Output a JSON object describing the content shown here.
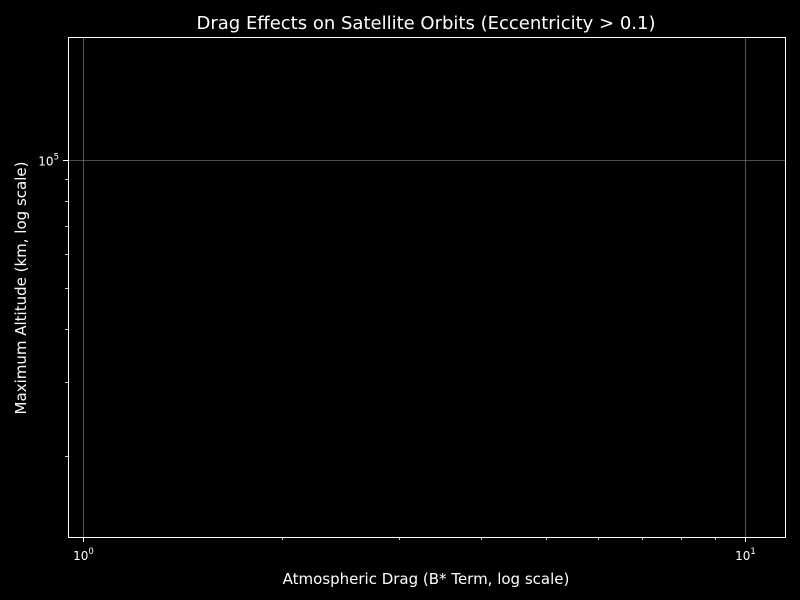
{
  "chart_data": {
    "type": "scatter",
    "title": "Drag Effects on Satellite Orbits (Eccentricity > 0.1)",
    "xlabel": "Atmospheric Drag (B* Term, log scale)",
    "ylabel": "Maximum Altitude (km, log scale)",
    "xscale": "log",
    "yscale": "log",
    "xlim": [
      0.95,
      11.5
    ],
    "ylim": [
      12900,
      195000
    ],
    "grid": true,
    "x_major_ticks": [
      {
        "value": 1,
        "base": "10",
        "exp": "0"
      },
      {
        "value": 10,
        "base": "10",
        "exp": "1"
      }
    ],
    "y_major_ticks": [
      {
        "value": 100000,
        "base": "10",
        "exp": "5"
      }
    ],
    "x_minor_ticks": [
      2,
      3,
      4,
      5,
      6,
      7,
      8,
      9
    ],
    "y_minor_ticks": [
      20000,
      30000,
      40000,
      50000,
      60000,
      70000,
      80000,
      90000
    ],
    "series": [
      {
        "x": [],
        "y": []
      }
    ],
    "colors": {
      "background": "#000000",
      "axes": "#ffffff",
      "grid": "#808080",
      "text": "#ffffff"
    }
  }
}
